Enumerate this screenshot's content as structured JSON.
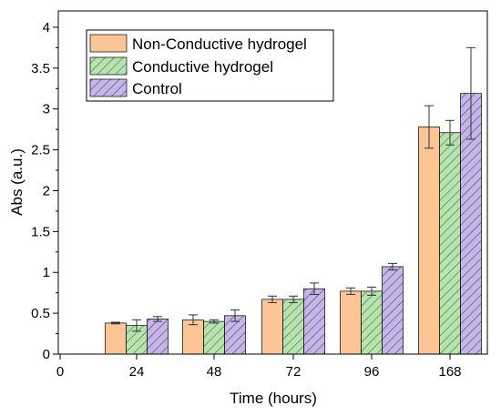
{
  "chart_data": {
    "type": "bar",
    "xlabel": "Time (hours)",
    "ylabel": "Abs (a.u.)",
    "x_ticks": [
      "0",
      "24",
      "48",
      "72",
      "96",
      "168"
    ],
    "y_ticks": [
      "0",
      "0.5",
      "1",
      "1.5",
      "2",
      "2.5",
      "3",
      "3.5",
      "4"
    ],
    "ylim": [
      0,
      4.2
    ],
    "categories": [
      "24",
      "48",
      "72",
      "96",
      "168"
    ],
    "series": [
      {
        "name": "Non-Conductive hydrogel",
        "color": "#fdc596",
        "pattern": "none",
        "values": [
          0.38,
          0.42,
          0.67,
          0.77,
          2.78
        ],
        "errors": [
          0.01,
          0.06,
          0.04,
          0.04,
          0.26
        ]
      },
      {
        "name": "Conductive hydrogel",
        "color": "#b8e3ae",
        "pattern": "diagonal-hatch",
        "values": [
          0.35,
          0.4,
          0.67,
          0.77,
          2.71
        ],
        "errors": [
          0.07,
          0.02,
          0.04,
          0.05,
          0.15
        ]
      },
      {
        "name": "Control",
        "color": "#c5b6e6",
        "pattern": "diagonal-hatch",
        "values": [
          0.43,
          0.47,
          0.8,
          1.07,
          3.19
        ],
        "errors": [
          0.03,
          0.07,
          0.07,
          0.04,
          0.56
        ]
      }
    ],
    "legend_position": "top-left",
    "grid": false
  }
}
